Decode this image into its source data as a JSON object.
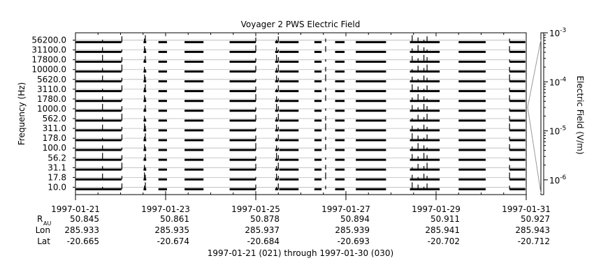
{
  "chart_data": {
    "type": "line",
    "title": "Voyager 2 PWS Electric Field",
    "ylabel": "Frequency (Hz)",
    "colorbar_label": "Electric Field (V/m)",
    "xlabel": "1997-01-21 (021) through 1997-01-30 (030)",
    "x_range": [
      "1997-01-21",
      "1997-01-31"
    ],
    "channels": [
      "56200.0",
      "31100.0",
      "17800.0",
      "10000.0",
      "5620.0",
      "3110.0",
      "1780.0",
      "1000.0",
      "562.0",
      "311.0",
      "178.0",
      "100.0",
      "56.2",
      "31.1",
      "17.8",
      "10.0"
    ],
    "colorbar_ticks": [
      {
        "base": "10",
        "exp": "-3",
        "value": 0.001
      },
      {
        "base": "10",
        "exp": "-4",
        "value": 0.0001
      },
      {
        "base": "10",
        "exp": "-5",
        "value": 1e-05
      },
      {
        "base": "10",
        "exp": "-6",
        "value": 1e-06
      }
    ],
    "colorbar_range": [
      5e-07,
      0.001
    ],
    "x_ticks": [
      {
        "date": "1997-01-21",
        "r": "50.845",
        "lon": "285.933",
        "lat": "-20.665"
      },
      {
        "date": "1997-01-23",
        "r": "50.861",
        "lon": "285.935",
        "lat": "-20.674"
      },
      {
        "date": "1997-01-25",
        "r": "50.878",
        "lon": "285.937",
        "lat": "-20.684"
      },
      {
        "date": "1997-01-27",
        "r": "50.894",
        "lon": "285.939",
        "lat": "-20.693"
      },
      {
        "date": "1997-01-29",
        "r": "50.911",
        "lon": "285.941",
        "lat": "-20.702"
      },
      {
        "date": "1997-01-31",
        "r": "50.927",
        "lon": "285.943",
        "lat": "-20.712"
      }
    ],
    "row_labels": {
      "r_main": "R",
      "r_sub": "AU",
      "lon": "Lon",
      "lat": "Lat"
    },
    "data_segments_days": [
      [
        0.0,
        0.02
      ],
      [
        0.02,
        0.6
      ],
      [
        0.6,
        1.02
      ],
      [
        1.51,
        1.57
      ],
      [
        1.84,
        2.03
      ],
      [
        2.42,
        2.84
      ],
      [
        3.42,
        4.0
      ],
      [
        4.43,
        4.5
      ],
      [
        4.52,
        4.95
      ],
      [
        5.3,
        5.46
      ],
      [
        5.76,
        5.97
      ],
      [
        6.22,
        6.89
      ],
      [
        7.42,
        8.08
      ],
      [
        8.5,
        9.1
      ],
      [
        9.63,
        9.98
      ]
    ],
    "spike_days": [
      0.6,
      1.03,
      1.53,
      1.55,
      4.0,
      4.46,
      4.5,
      5.55,
      7.47,
      7.6,
      7.73,
      7.8,
      9.63
    ],
    "grid": true
  }
}
